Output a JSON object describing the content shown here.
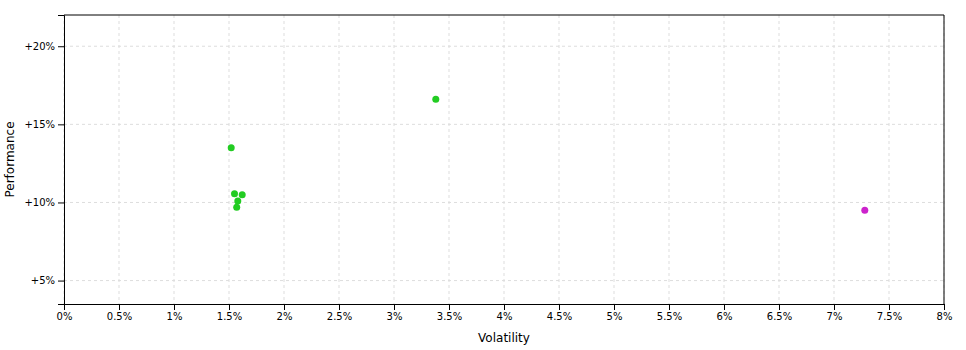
{
  "chart_data": {
    "type": "scatter",
    "xlabel": "Volatility",
    "ylabel": "Performance",
    "xlim": [
      0,
      8.0
    ],
    "ylim": [
      3.5,
      22.0
    ],
    "xticks": [
      {
        "value": 0,
        "label": "0%"
      },
      {
        "value": 0.5,
        "label": "0.5%"
      },
      {
        "value": 1.0,
        "label": "1%"
      },
      {
        "value": 1.5,
        "label": "1.5%"
      },
      {
        "value": 2.0,
        "label": "2%"
      },
      {
        "value": 2.5,
        "label": "2.5%"
      },
      {
        "value": 3.0,
        "label": "3%"
      },
      {
        "value": 3.5,
        "label": "3.5%"
      },
      {
        "value": 4.0,
        "label": "4%"
      },
      {
        "value": 4.5,
        "label": "4.5%"
      },
      {
        "value": 5.0,
        "label": "5%"
      },
      {
        "value": 5.5,
        "label": "5.5%"
      },
      {
        "value": 6.0,
        "label": "6%"
      },
      {
        "value": 6.5,
        "label": "6.5%"
      },
      {
        "value": 7.0,
        "label": "7%"
      },
      {
        "value": 7.5,
        "label": "7.5%"
      },
      {
        "value": 8.0,
        "label": "8%"
      }
    ],
    "yticks": [
      {
        "value": 5,
        "label": "+5%"
      },
      {
        "value": 10,
        "label": "+10%"
      },
      {
        "value": 15,
        "label": "+15%"
      },
      {
        "value": 20,
        "label": "+20%"
      }
    ],
    "grid": true,
    "series": [
      {
        "color": "#22cc22",
        "x": [
          1.52,
          1.55,
          1.62,
          1.58,
          1.57,
          3.38
        ],
        "values": [
          13.5,
          10.55,
          10.5,
          10.1,
          9.7,
          16.6
        ]
      },
      {
        "color": "#cc22cc",
        "x": [
          7.28
        ],
        "values": [
          9.5
        ]
      }
    ]
  }
}
